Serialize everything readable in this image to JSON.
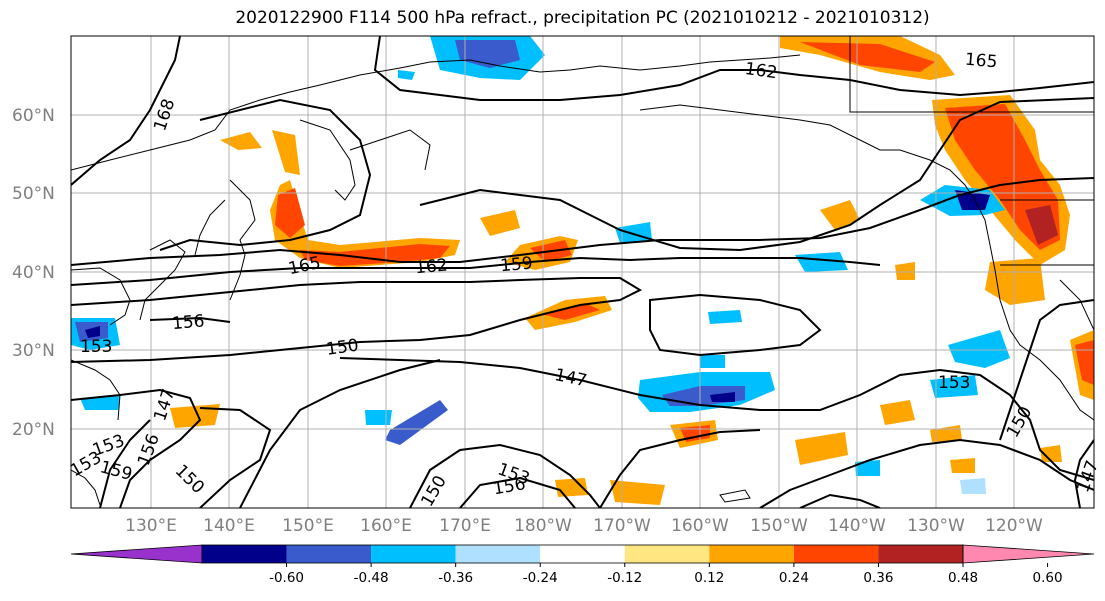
{
  "title": "2020122900 F114 500 hPa refract., precipitation PC (2021010212 - 2021010312)",
  "map": {
    "lat_labels": [
      "60°N",
      "50°N",
      "40°N",
      "30°N",
      "20°N"
    ],
    "lon_labels": [
      "130°E",
      "140°E",
      "150°E",
      "160°E",
      "170°E",
      "180°W",
      "170°W",
      "160°W",
      "150°W",
      "140°W",
      "130°W",
      "120°W"
    ],
    "contour_labels": [
      "168",
      "162",
      "165",
      "165",
      "162",
      "159",
      "156",
      "153",
      "150",
      "147",
      "147",
      "153",
      "150",
      "153",
      "156",
      "159",
      "150",
      "150",
      "153",
      "156",
      "153",
      "147"
    ]
  },
  "colorbar": {
    "ticks": [
      "-0.60",
      "-0.48",
      "-0.36",
      "-0.24",
      "-0.12",
      "0.12",
      "0.24",
      "0.36",
      "0.48",
      "0.60"
    ],
    "colors": [
      "#9932cc",
      "#00008b",
      "#3a5bcb",
      "#00bfff",
      "#b0e0ff",
      "#ffffff",
      "#ffe680",
      "#ffa500",
      "#ff4500",
      "#b22222",
      "#ff88b0"
    ]
  }
}
